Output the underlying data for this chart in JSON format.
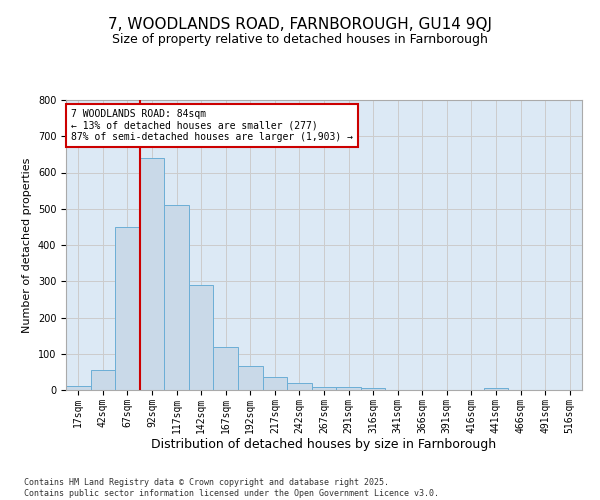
{
  "title_line1": "7, WOODLANDS ROAD, FARNBOROUGH, GU14 9QJ",
  "title_line2": "Size of property relative to detached houses in Farnborough",
  "xlabel": "Distribution of detached houses by size in Farnborough",
  "ylabel": "Number of detached properties",
  "categories": [
    "17sqm",
    "42sqm",
    "67sqm",
    "92sqm",
    "117sqm",
    "142sqm",
    "167sqm",
    "192sqm",
    "217sqm",
    "242sqm",
    "267sqm",
    "291sqm",
    "316sqm",
    "341sqm",
    "366sqm",
    "391sqm",
    "416sqm",
    "441sqm",
    "466sqm",
    "491sqm",
    "516sqm"
  ],
  "values": [
    10,
    55,
    450,
    640,
    510,
    290,
    120,
    65,
    35,
    20,
    8,
    8,
    5,
    0,
    0,
    0,
    0,
    5,
    0,
    0,
    0
  ],
  "bar_color": "#c9d9e8",
  "bar_edge_color": "#6baed6",
  "vline_x": 2.5,
  "vline_color": "#cc0000",
  "annotation_text": "7 WOODLANDS ROAD: 84sqm\n← 13% of detached houses are smaller (277)\n87% of semi-detached houses are larger (1,903) →",
  "annotation_box_color": "#ffffff",
  "annotation_box_edge": "#cc0000",
  "ylim": [
    0,
    800
  ],
  "yticks": [
    0,
    100,
    200,
    300,
    400,
    500,
    600,
    700,
    800
  ],
  "grid_color": "#cccccc",
  "bg_color": "#dce9f5",
  "footnote": "Contains HM Land Registry data © Crown copyright and database right 2025.\nContains public sector information licensed under the Open Government Licence v3.0.",
  "title_fontsize": 11,
  "subtitle_fontsize": 9,
  "xlabel_fontsize": 9,
  "ylabel_fontsize": 8,
  "tick_fontsize": 7,
  "annot_fontsize": 7,
  "footnote_fontsize": 6
}
